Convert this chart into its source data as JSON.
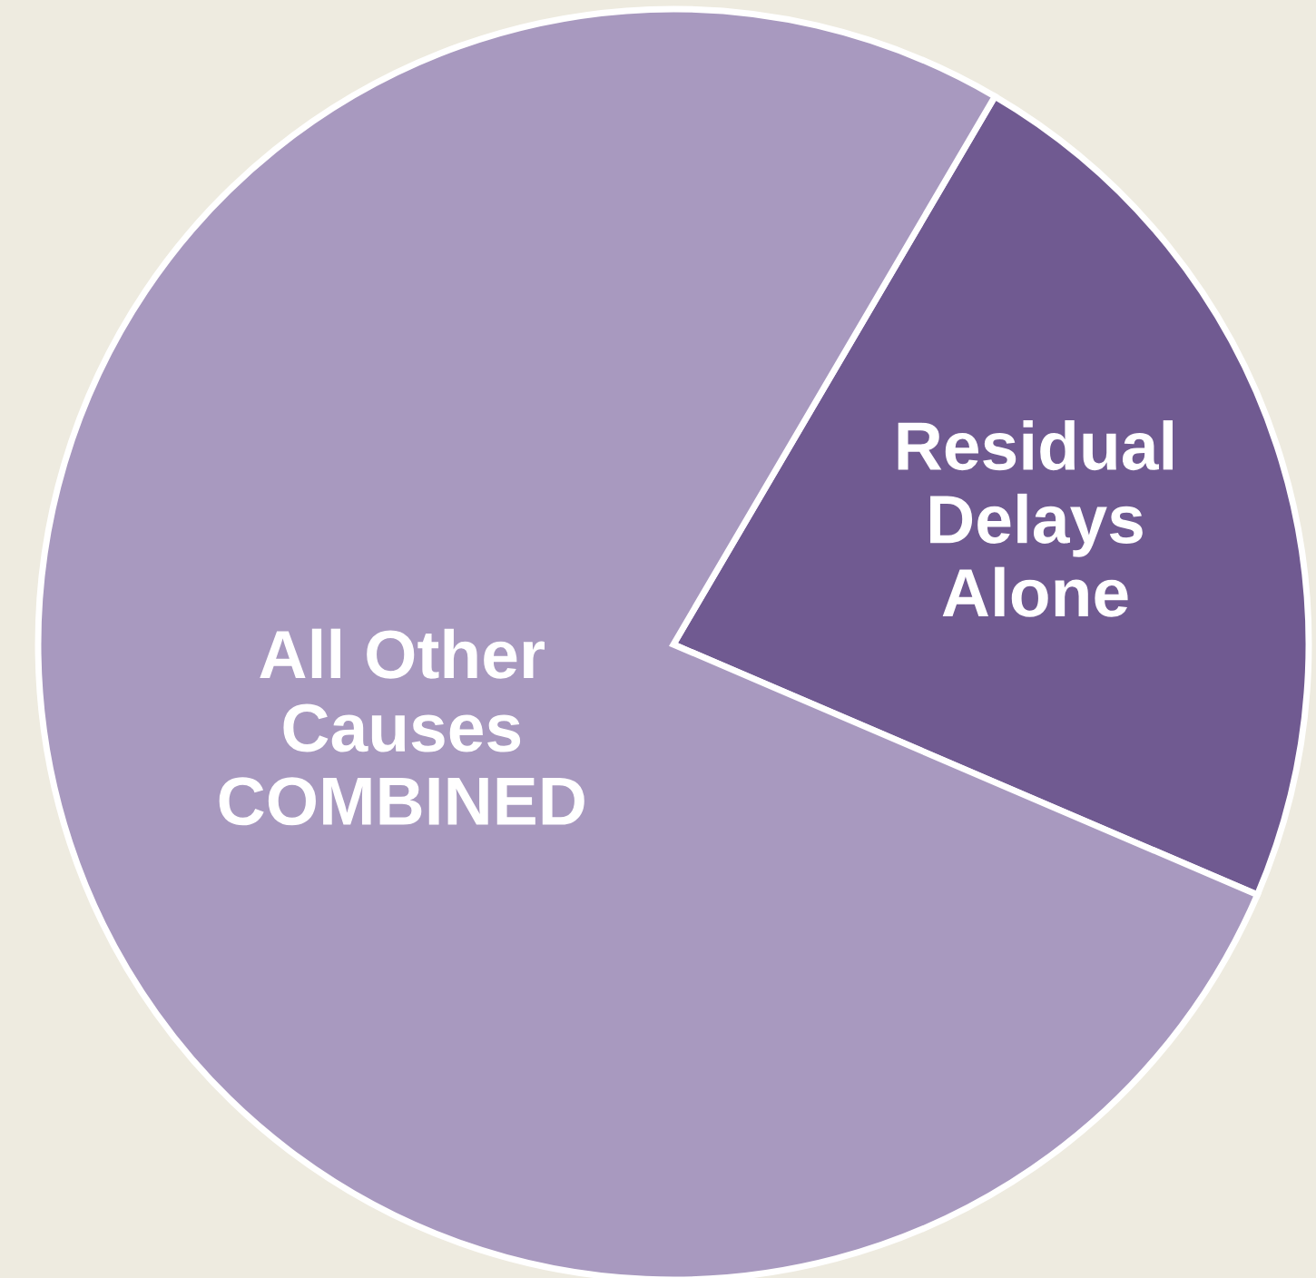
{
  "chart_data": {
    "type": "pie",
    "categories": [
      "Residual Delays Alone",
      "All Other Causes COMBINED"
    ],
    "values": [
      23,
      77
    ],
    "colors": [
      "#705a91",
      "#a899bf"
    ]
  }
}
